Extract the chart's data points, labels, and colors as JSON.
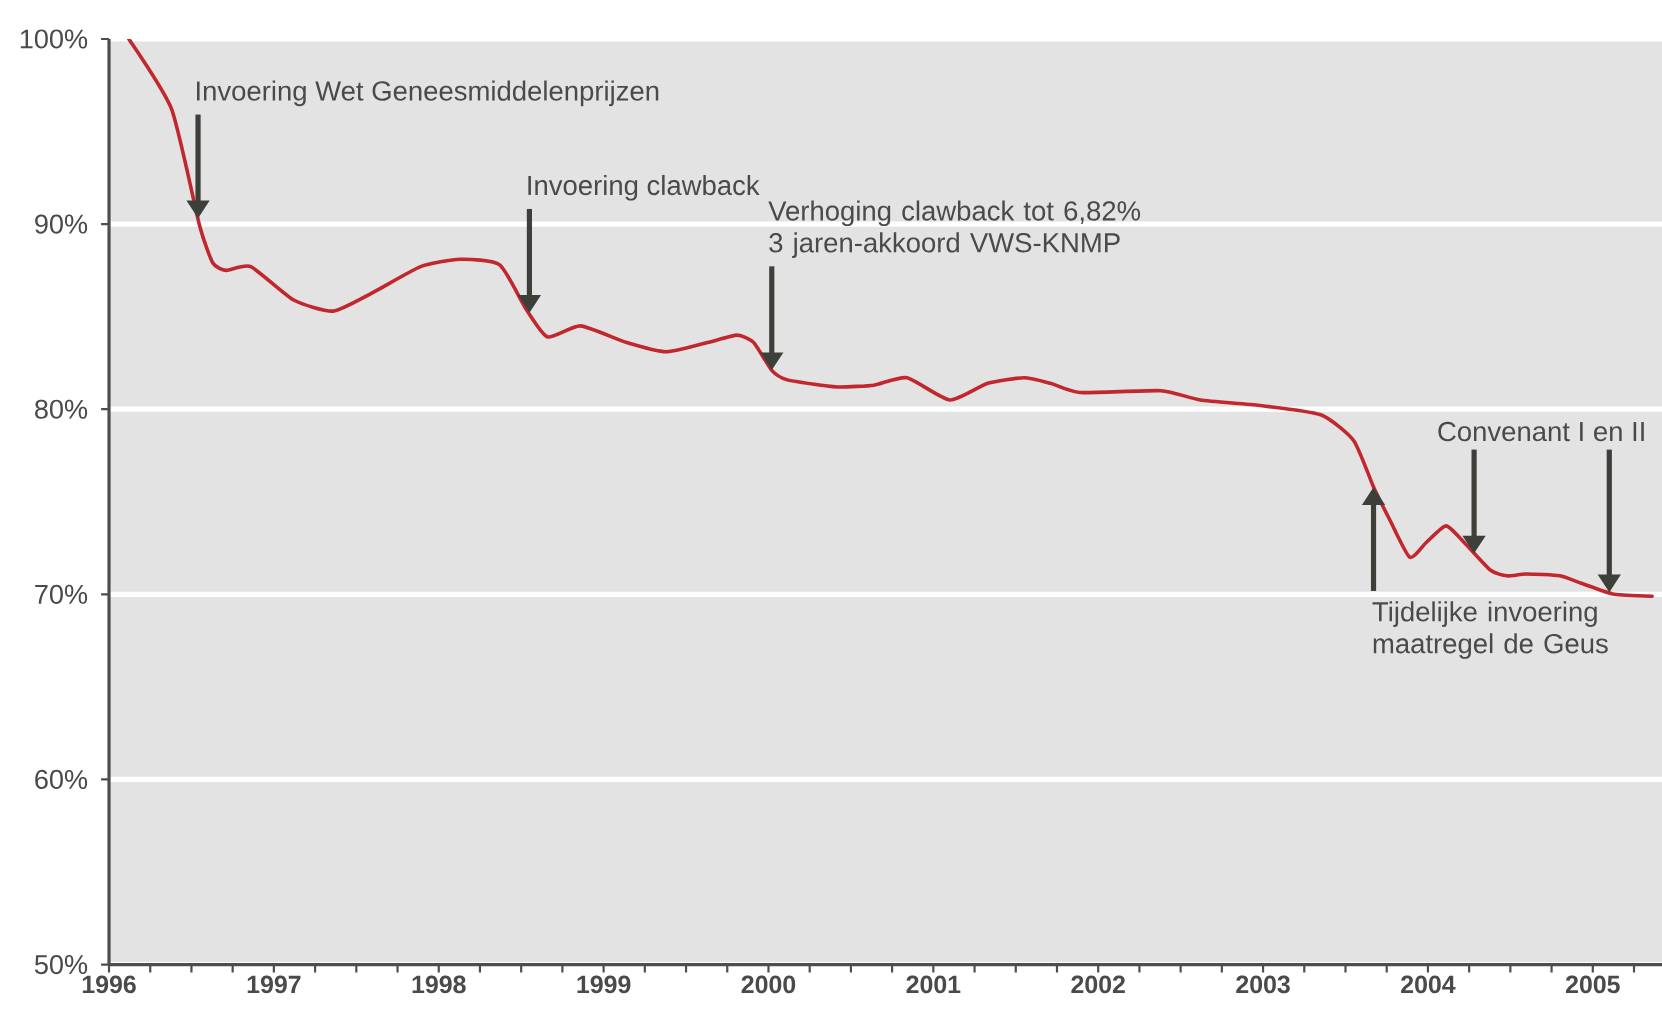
{
  "chart_data": {
    "type": "line",
    "x": [
      1996.12,
      1996.38,
      1996.55,
      1996.63,
      1996.71,
      1996.86,
      1997.12,
      1997.36,
      1997.6,
      1997.89,
      1998.13,
      1998.37,
      1998.53,
      1998.66,
      1998.86,
      1999.14,
      1999.38,
      1999.63,
      1999.81,
      1999.91,
      2000.02,
      2000.11,
      2000.32,
      2000.44,
      2000.64,
      2000.84,
      2001.1,
      2001.33,
      2001.55,
      2001.71,
      2001.89,
      2002.38,
      2002.62,
      2002.98,
      2003.35,
      2003.55,
      2003.67,
      2003.77,
      2003.89,
      2003.99,
      2004.11,
      2004.22,
      2004.38,
      2004.48,
      2004.6,
      2004.8,
      2004.93,
      2005.13,
      2005.36
    ],
    "values": [
      100,
      96.2,
      89.9,
      87.9,
      87.5,
      87.7,
      85.9,
      85.3,
      86.3,
      87.7,
      88.1,
      87.8,
      85.4,
      83.9,
      84.5,
      83.6,
      83.1,
      83.6,
      84.0,
      83.6,
      82.1,
      81.6,
      81.3,
      81.2,
      81.3,
      81.7,
      80.5,
      81.4,
      81.7,
      81.4,
      80.9,
      81.0,
      80.5,
      80.2,
      79.7,
      78.3,
      75.8,
      74.0,
      72.0,
      72.8,
      73.7,
      72.8,
      71.3,
      71.0,
      71.1,
      71.0,
      70.6,
      70.0,
      69.9
    ],
    "color": "#c1272d",
    "xlim": [
      1996,
      2005.42
    ],
    "ylim": [
      50,
      100
    ],
    "xticks": [
      1996,
      {
        "value": 1996.25,
        "label": null
      },
      {
        "value": 1996.5,
        "label": null
      },
      {
        "value": 1996.75,
        "label": null
      },
      1997,
      {
        "value": 1997.25,
        "label": null
      },
      {
        "value": 1997.5,
        "label": null
      },
      {
        "value": 1997.75,
        "label": null
      },
      1998,
      {
        "value": 1998.25,
        "label": null
      },
      {
        "value": 1998.5,
        "label": null
      },
      {
        "value": 1998.75,
        "label": null
      },
      1999,
      {
        "value": 1999.25,
        "label": null
      },
      {
        "value": 1999.5,
        "label": null
      },
      {
        "value": 1999.75,
        "label": null
      },
      2000,
      {
        "value": 2000.25,
        "label": null
      },
      {
        "value": 2000.5,
        "label": null
      },
      {
        "value": 2000.75,
        "label": null
      },
      2001,
      {
        "value": 2001.25,
        "label": null
      },
      {
        "value": 2001.5,
        "label": null
      },
      {
        "value": 2001.75,
        "label": null
      },
      2002,
      {
        "value": 2002.25,
        "label": null
      },
      {
        "value": 2002.5,
        "label": null
      },
      {
        "value": 2002.75,
        "label": null
      },
      2003,
      {
        "value": 2003.25,
        "label": null
      },
      {
        "value": 2003.5,
        "label": null
      },
      {
        "value": 2003.75,
        "label": null
      },
      2004,
      {
        "value": 2004.25,
        "label": null
      },
      {
        "value": 2004.5,
        "label": null
      },
      {
        "value": 2004.75,
        "label": null
      },
      2005,
      {
        "value": 2005.25,
        "label": null
      }
    ],
    "yticks": [
      {
        "value": 50,
        "label": "50%"
      },
      {
        "value": 60,
        "label": "60%"
      },
      {
        "value": 70,
        "label": "70%"
      },
      {
        "value": 80,
        "label": "80%"
      },
      {
        "value": 90,
        "label": "90%"
      },
      {
        "value": 100,
        "label": "100%"
      }
    ],
    "grid": "y",
    "annotations": [
      {
        "text": "Invoering Wet Geneesmiddelenprijzen",
        "x": 1996.54,
        "y": 90.3
      },
      {
        "text": "Invoering clawback",
        "x": 1998.55,
        "y": 85.2
      },
      {
        "text": "Verhoging clawback tot 6,82% 3 jaren-akkoord VWS-KNMP",
        "x": 2000.02,
        "y": 82.1
      },
      {
        "text": "Tijdelijke invoering maatregel de Geus",
        "x": 2003.67,
        "y": 75.8
      },
      {
        "text": "Convenant I",
        "x": 2004.28,
        "y": 72.2
      },
      {
        "text": "en II",
        "x": 2005.1,
        "y": 70.1
      }
    ]
  }
}
